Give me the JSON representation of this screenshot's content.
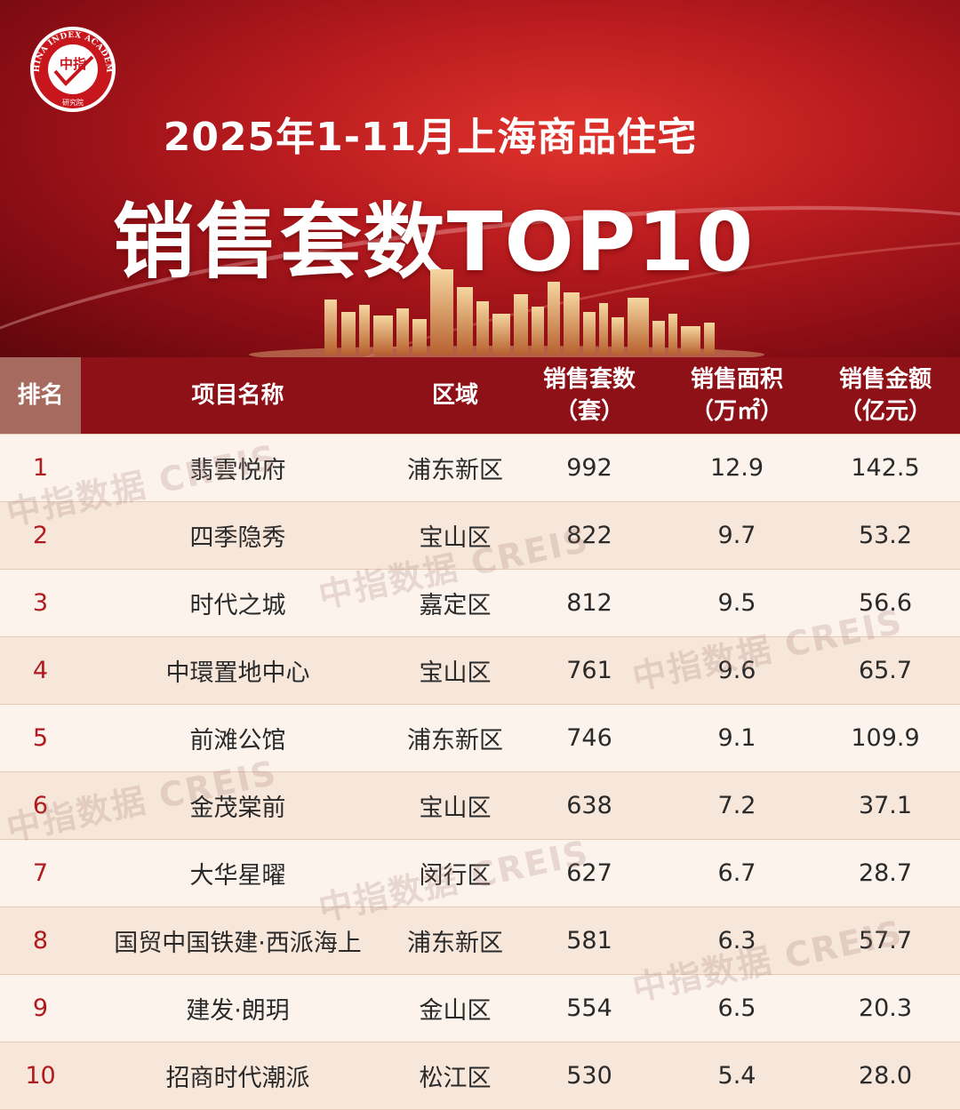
{
  "header": {
    "logo_top_text": "CHINA INDEX ACADEMY",
    "logo_center": "中指",
    "logo_bottom_text": "研究院",
    "title_line1": "2025年1-11月上海商品住宅",
    "title_line2": "销售套数TOP10"
  },
  "table": {
    "columns": {
      "rank": "排名",
      "name": "项目名称",
      "area": "区域",
      "sets_line1": "销售套数",
      "sets_line2": "（套）",
      "size_line1": "销售面积",
      "size_line2": "（万㎡）",
      "amount_line1": "销售金额",
      "amount_line2": "（亿元）"
    },
    "rows": [
      {
        "rank": "1",
        "name": "翡雲悦府",
        "area": "浦东新区",
        "sets": "992",
        "size": "12.9",
        "amount": "142.5"
      },
      {
        "rank": "2",
        "name": "四季隐秀",
        "area": "宝山区",
        "sets": "822",
        "size": "9.7",
        "amount": "53.2"
      },
      {
        "rank": "3",
        "name": "时代之城",
        "area": "嘉定区",
        "sets": "812",
        "size": "9.5",
        "amount": "56.6"
      },
      {
        "rank": "4",
        "name": "中環置地中心",
        "area": "宝山区",
        "sets": "761",
        "size": "9.6",
        "amount": "65.7"
      },
      {
        "rank": "5",
        "name": "前滩公馆",
        "area": "浦东新区",
        "sets": "746",
        "size": "9.1",
        "amount": "109.9"
      },
      {
        "rank": "6",
        "name": "金茂棠前",
        "area": "宝山区",
        "sets": "638",
        "size": "7.2",
        "amount": "37.1"
      },
      {
        "rank": "7",
        "name": "大华星曜",
        "area": "闵行区",
        "sets": "627",
        "size": "6.7",
        "amount": "28.7"
      },
      {
        "rank": "8",
        "name": "国贸中国铁建·西派海上",
        "area": "浦东新区",
        "sets": "581",
        "size": "6.3",
        "amount": "57.7"
      },
      {
        "rank": "9",
        "name": "建发·朗玥",
        "area": "金山区",
        "sets": "554",
        "size": "6.5",
        "amount": "20.3"
      },
      {
        "rank": "10",
        "name": "招商时代潮派",
        "area": "松江区",
        "sets": "530",
        "size": "5.4",
        "amount": "28.0"
      }
    ]
  },
  "watermark": "中指数据 CREIS",
  "colors": {
    "banner": "#b81b1f",
    "header_bg": "#8f1118",
    "rank_header_bg": "#a66b5e",
    "rank_text": "#b01a1f",
    "row_odd": "#fbf3ec",
    "row_even": "#f7e6da"
  }
}
